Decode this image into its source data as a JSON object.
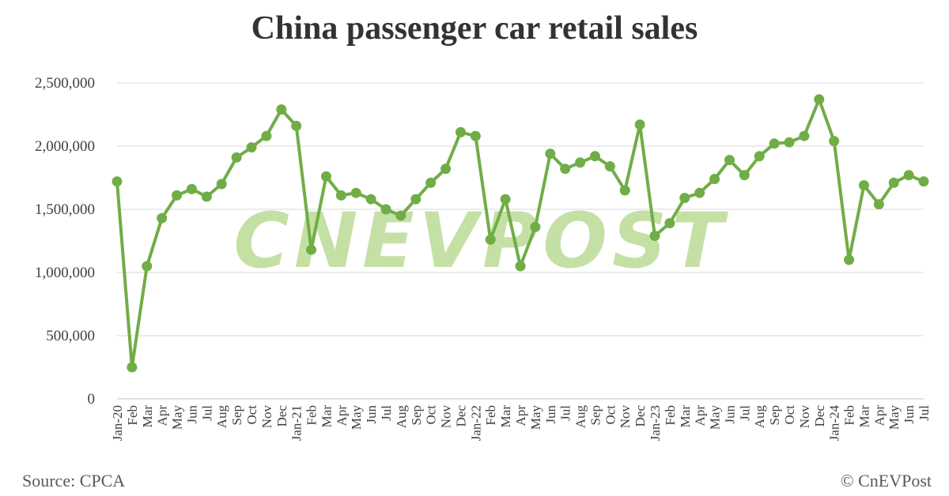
{
  "title": "China passenger car retail sales",
  "source": "Source: CPCA",
  "copyright": "© CnEVPost",
  "watermark": "CNEVPOST",
  "colors": {
    "line": "#70AD47",
    "watermark": "#C5E0A5",
    "grid": "#D9D9D9",
    "axis_text": "#404040"
  },
  "chart_data": {
    "type": "line",
    "title": "China passenger car retail sales",
    "xlabel": "",
    "ylabel": "",
    "ylim": [
      0,
      2500000
    ],
    "yticks": [
      0,
      500000,
      1000000,
      1500000,
      2000000,
      2500000
    ],
    "ytick_labels": [
      "0",
      "500,000",
      "1,000,000",
      "1,500,000",
      "2,000,000",
      "2,500,000"
    ],
    "grid": true,
    "legend": "none",
    "categories": [
      "Jan-20",
      "Feb",
      "Mar",
      "Apr",
      "May",
      "Jun",
      "Jul",
      "Aug",
      "Sep",
      "Oct",
      "Nov",
      "Dec",
      "Jan-21",
      "Feb",
      "Mar",
      "Apr",
      "May",
      "Jun",
      "Jul",
      "Aug",
      "Sep",
      "Oct",
      "Nov",
      "Dec",
      "Jan-22",
      "Feb",
      "Mar",
      "Apr",
      "May",
      "Jun",
      "Jul",
      "Aug",
      "Sep",
      "Oct",
      "Nov",
      "Dec",
      "Jan-23",
      "Feb",
      "Mar",
      "Apr",
      "May",
      "Jun",
      "Jul",
      "Aug",
      "Sep",
      "Oct",
      "Nov",
      "Dec",
      "Jan-24",
      "Feb",
      "Mar",
      "Apr",
      "May",
      "Jun",
      "Jul"
    ],
    "series": [
      {
        "values": [
          1720000,
          250000,
          1050000,
          1430000,
          1610000,
          1660000,
          1600000,
          1700000,
          1910000,
          1990000,
          2080000,
          2290000,
          2160000,
          1180000,
          1760000,
          1610000,
          1630000,
          1580000,
          1500000,
          1450000,
          1580000,
          1710000,
          1820000,
          2110000,
          2080000,
          1260000,
          1580000,
          1050000,
          1360000,
          1940000,
          1820000,
          1870000,
          1920000,
          1840000,
          1650000,
          2170000,
          1290000,
          1390000,
          1590000,
          1630000,
          1740000,
          1890000,
          1770000,
          1920000,
          2020000,
          2030000,
          2080000,
          2370000,
          2040000,
          1100000,
          1690000,
          1540000,
          1710000,
          1770000,
          1720000
        ]
      }
    ]
  }
}
